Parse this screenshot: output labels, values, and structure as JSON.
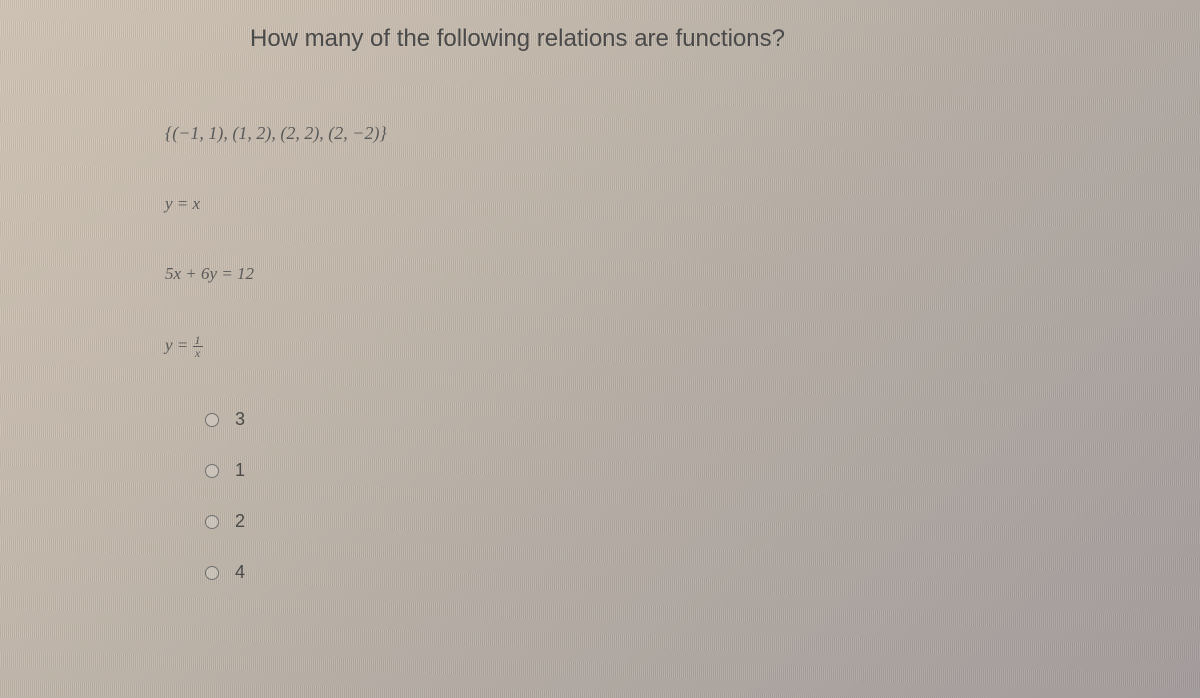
{
  "question": "How many of the following relations are functions?",
  "relations": {
    "r1": "{(−1, 1), (1, 2), (2, 2), (2, −2)}",
    "r2": "y = x",
    "r3": "5x + 6y = 12",
    "r4_lhs": "y = ",
    "r4_num": "1",
    "r4_den": "x"
  },
  "options": [
    {
      "label": "3"
    },
    {
      "label": "1"
    },
    {
      "label": "2"
    },
    {
      "label": "4"
    }
  ],
  "colors": {
    "text": "#4a4a4a",
    "sub": "#5a5a5a",
    "radio_border": "#707070"
  }
}
